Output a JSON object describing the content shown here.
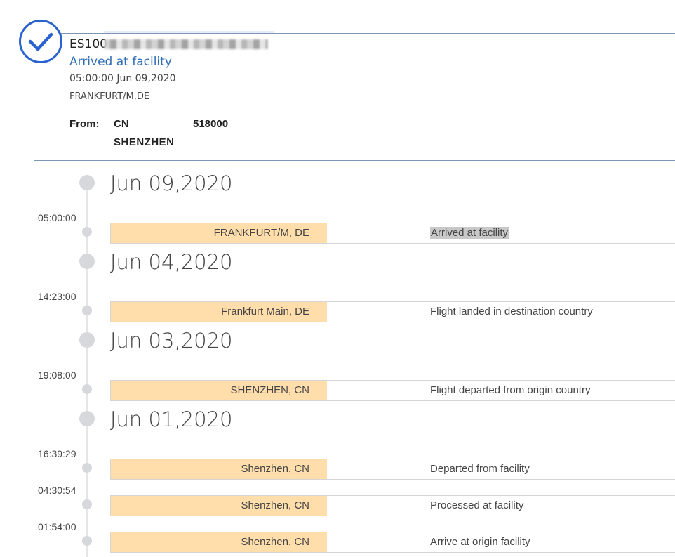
{
  "shipment": {
    "tracking_prefix": "ES100",
    "status": "Arrived at facility",
    "datetime": "05:00:00 Jun 09,2020",
    "location": "FRANKFURT/M,DE",
    "from_label": "From:",
    "from_country": "CN",
    "from_postal": "518000",
    "from_city": "SHENZHEN"
  },
  "colors": {
    "accent": "#2a63cf",
    "status_text": "#2f6db5",
    "location_cell": "#ffdeac"
  },
  "timeline": {
    "days": [
      {
        "date": "Jun 09,2020",
        "events": [
          {
            "time": "05:00:00",
            "location": "FRANKFURT/M, DE",
            "description": "Arrived at facility"
          }
        ]
      },
      {
        "date": "Jun 04,2020",
        "events": [
          {
            "time": "14:23:00",
            "location": "Frankfurt Main, DE",
            "description": "Flight landed in destination country"
          }
        ]
      },
      {
        "date": "Jun 03,2020",
        "events": [
          {
            "time": "19:08:00",
            "location": "SHENZHEN, CN",
            "description": "Flight departed from origin country"
          }
        ]
      },
      {
        "date": "Jun 01,2020",
        "events": [
          {
            "time": "16:39:29",
            "location": "Shenzhen, CN",
            "description": "Departed from facility"
          },
          {
            "time": "04:30:54",
            "location": "Shenzhen, CN",
            "description": "Processed at facility"
          },
          {
            "time": "01:54:00",
            "location": "Shenzhen, CN",
            "description": "Arrive at origin facility"
          }
        ]
      }
    ]
  }
}
